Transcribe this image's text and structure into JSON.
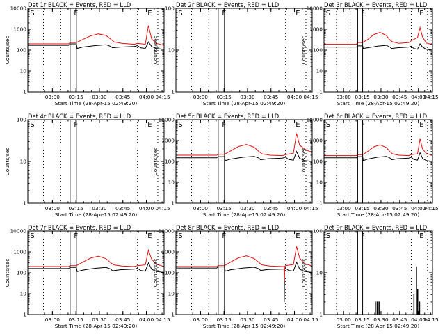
{
  "figure": {
    "title_suffix": "BLACK = Events, RED = LLD",
    "x_axis_label": "Start Time (28-Apr-15 02:49:20)",
    "y_axis_label": "Counts/sec",
    "colors": {
      "events": "#000000",
      "lld": "#e01010",
      "axes": "#000000"
    }
  },
  "chart_data": [
    {
      "type": "line",
      "title": "Det 1r",
      "ylim": [
        1,
        10000
      ],
      "yscale": "log",
      "yticks": [
        "1",
        "10",
        "100",
        "1000",
        "10000"
      ],
      "xrange_minutes": [
        -5,
        82
      ],
      "xticks": [
        "03:00",
        "03:15",
        "03:30",
        "03:45",
        "04:00",
        "04:15"
      ],
      "xtick_minutes": [
        10.7,
        25.7,
        40.7,
        55.7,
        70.7,
        85.7
      ],
      "markers": [
        {
          "label": "S",
          "minute": -4
        },
        {
          "label": "F",
          "minute": 24
        },
        {
          "label": "E",
          "minute": 71
        }
      ],
      "vlines_dotted_minutes": [
        5,
        16,
        65,
        78
      ],
      "vlines_solid_minutes": [
        22,
        26
      ],
      "series": [
        {
          "name": "Events",
          "color": "#000000",
          "x": [
            -5,
            21,
            22,
            26,
            26.5,
            30,
            38,
            45,
            48,
            49,
            54,
            63,
            65,
            67,
            70,
            72,
            74,
            77,
            82
          ],
          "values": [
            170,
            170,
            200,
            200,
            120,
            140,
            165,
            180,
            150,
            130,
            140,
            150,
            165,
            130,
            120,
            250,
            150,
            120,
            110
          ]
        },
        {
          "name": "LLD",
          "color": "#e01010",
          "x": [
            -5,
            21,
            22,
            26,
            30,
            35,
            40,
            45,
            48,
            50,
            55,
            63,
            65,
            70,
            72,
            74,
            77,
            82
          ],
          "values": [
            200,
            200,
            230,
            230,
            320,
            480,
            600,
            500,
            330,
            250,
            210,
            190,
            210,
            190,
            1500,
            350,
            210,
            170
          ]
        }
      ]
    },
    {
      "type": "line",
      "title": "Det 2r",
      "ylim": [
        1,
        100
      ],
      "yscale": "log",
      "yticks": [
        "1",
        "10",
        "100"
      ],
      "xrange_minutes": [
        -5,
        82
      ],
      "xticks": [
        "03:00",
        "03:15",
        "03:30",
        "03:45",
        "04:00",
        "04:15"
      ],
      "xtick_minutes": [
        10.7,
        25.7,
        40.7,
        55.7,
        70.7,
        85.7
      ],
      "markers": [
        {
          "label": "S",
          "minute": -4
        },
        {
          "label": "F",
          "minute": 24
        },
        {
          "label": "E",
          "minute": 71
        }
      ],
      "vlines_dotted_minutes": [
        5,
        16,
        65,
        78
      ],
      "vlines_solid_minutes": [
        22,
        26
      ],
      "series": []
    },
    {
      "type": "line",
      "title": "Det 3r",
      "ylim": [
        1,
        10000
      ],
      "yscale": "log",
      "yticks": [
        "1",
        "10",
        "100",
        "1000",
        "10000"
      ],
      "xrange_minutes": [
        -5,
        82
      ],
      "xticks": [
        "03:00",
        "03:15",
        "03:30",
        "03:45",
        "04:00",
        "04:15"
      ],
      "xtick_minutes": [
        10.7,
        25.7,
        40.7,
        55.7,
        70.7,
        85.7
      ],
      "markers": [
        {
          "label": "S",
          "minute": -4
        },
        {
          "label": "F",
          "minute": 24
        },
        {
          "label": "E",
          "minute": 71
        }
      ],
      "vlines_dotted_minutes": [
        5,
        16,
        65,
        78
      ],
      "vlines_solid_minutes": [
        22,
        26
      ],
      "series": [
        {
          "name": "Events",
          "color": "#000000",
          "x": [
            -5,
            21,
            22,
            26,
            26.5,
            30,
            38,
            45,
            48,
            49,
            54,
            63,
            65,
            67,
            70,
            72,
            74,
            77,
            82
          ],
          "values": [
            140,
            140,
            160,
            160,
            120,
            130,
            155,
            170,
            140,
            120,
            130,
            140,
            155,
            120,
            110,
            200,
            140,
            110,
            100
          ]
        },
        {
          "name": "LLD",
          "color": "#e01010",
          "x": [
            -5,
            21,
            22,
            26,
            30,
            35,
            40,
            45,
            48,
            50,
            55,
            63,
            65,
            70,
            72,
            74,
            77,
            82
          ],
          "values": [
            190,
            190,
            230,
            230,
            320,
            560,
            700,
            500,
            300,
            250,
            210,
            230,
            280,
            400,
            1200,
            430,
            220,
            180
          ]
        }
      ]
    },
    {
      "type": "line",
      "title": "Det 4r",
      "ylim": [
        1,
        100
      ],
      "yscale": "log",
      "yticks": [
        "1",
        "10",
        "100"
      ],
      "xrange_minutes": [
        -5,
        82
      ],
      "xticks": [
        "03:00",
        "03:15",
        "03:30",
        "03:45",
        "04:00",
        "04:15"
      ],
      "xtick_minutes": [
        10.7,
        25.7,
        40.7,
        55.7,
        70.7,
        85.7
      ],
      "markers": [
        {
          "label": "S",
          "minute": -4
        },
        {
          "label": "F",
          "minute": 24
        },
        {
          "label": "E",
          "minute": 71
        }
      ],
      "vlines_dotted_minutes": [
        5,
        16,
        65,
        78
      ],
      "vlines_solid_minutes": [
        22,
        26
      ],
      "series": []
    },
    {
      "type": "line",
      "title": "Det 5r",
      "ylim": [
        1,
        10000
      ],
      "yscale": "log",
      "yticks": [
        "1",
        "10",
        "100",
        "1000",
        "10000"
      ],
      "xrange_minutes": [
        -5,
        82
      ],
      "xticks": [
        "03:00",
        "03:15",
        "03:30",
        "03:45",
        "04:00",
        "04:15"
      ],
      "xtick_minutes": [
        10.7,
        25.7,
        40.7,
        55.7,
        70.7,
        85.7
      ],
      "markers": [
        {
          "label": "S",
          "minute": -4
        },
        {
          "label": "F",
          "minute": 24
        },
        {
          "label": "E",
          "minute": 71
        }
      ],
      "vlines_dotted_minutes": [
        5,
        16,
        65,
        78
      ],
      "vlines_solid_minutes": [
        22,
        26
      ],
      "series": [
        {
          "name": "Events",
          "color": "#000000",
          "x": [
            -5,
            21,
            22,
            26,
            26.5,
            30,
            38,
            45,
            48,
            49,
            54,
            63,
            65,
            67,
            70,
            72,
            74,
            77,
            82
          ],
          "values": [
            150,
            150,
            170,
            170,
            110,
            130,
            160,
            175,
            145,
            120,
            135,
            145,
            160,
            125,
            115,
            300,
            140,
            110,
            100
          ]
        },
        {
          "name": "LLD",
          "color": "#e01010",
          "x": [
            -5,
            21,
            22,
            26,
            30,
            35,
            40,
            45,
            48,
            50,
            55,
            63,
            65,
            70,
            72,
            74,
            77,
            82
          ],
          "values": [
            200,
            200,
            220,
            220,
            320,
            520,
            650,
            480,
            300,
            230,
            200,
            190,
            210,
            250,
            2200,
            600,
            400,
            260
          ]
        }
      ]
    },
    {
      "type": "line",
      "title": "Det 6r",
      "ylim": [
        1,
        10000
      ],
      "yscale": "log",
      "yticks": [
        "1",
        "10",
        "100",
        "1000",
        "10000"
      ],
      "xrange_minutes": [
        -5,
        82
      ],
      "xticks": [
        "03:00",
        "03:15",
        "03:30",
        "03:45",
        "04:00",
        "04:15"
      ],
      "xtick_minutes": [
        10.7,
        25.7,
        40.7,
        55.7,
        70.7,
        85.7
      ],
      "markers": [
        {
          "label": "S",
          "minute": -4
        },
        {
          "label": "F",
          "minute": 24
        },
        {
          "label": "E",
          "minute": 71
        }
      ],
      "vlines_dotted_minutes": [
        5,
        16,
        65,
        78
      ],
      "vlines_solid_minutes": [
        22,
        26
      ],
      "series": [
        {
          "name": "Events",
          "color": "#000000",
          "x": [
            -5,
            21,
            22,
            26,
            26.5,
            30,
            38,
            45,
            48,
            49,
            54,
            63,
            65,
            67,
            70,
            72,
            74,
            77,
            82
          ],
          "values": [
            150,
            150,
            170,
            170,
            110,
            130,
            160,
            175,
            145,
            120,
            135,
            145,
            160,
            125,
            115,
            260,
            140,
            110,
            100
          ]
        },
        {
          "name": "LLD",
          "color": "#e01010",
          "x": [
            -5,
            21,
            22,
            26,
            30,
            35,
            40,
            45,
            48,
            50,
            55,
            63,
            65,
            70,
            72,
            74,
            77,
            82
          ],
          "values": [
            190,
            190,
            210,
            210,
            300,
            500,
            620,
            460,
            290,
            230,
            200,
            190,
            210,
            230,
            1200,
            400,
            240,
            200
          ]
        }
      ]
    },
    {
      "type": "line",
      "title": "Det 7r",
      "ylim": [
        1,
        10000
      ],
      "yscale": "log",
      "yticks": [
        "1",
        "10",
        "100",
        "1000",
        "10000"
      ],
      "xrange_minutes": [
        -5,
        82
      ],
      "xticks": [
        "03:00",
        "03:15",
        "03:30",
        "03:45",
        "04:00",
        "04:15"
      ],
      "xtick_minutes": [
        10.7,
        25.7,
        40.7,
        55.7,
        70.7,
        85.7
      ],
      "markers": [
        {
          "label": "S",
          "minute": -4
        },
        {
          "label": "F",
          "minute": 24
        },
        {
          "label": "E",
          "minute": 71
        }
      ],
      "vlines_dotted_minutes": [
        5,
        16,
        65,
        78
      ],
      "vlines_solid_minutes": [
        22,
        26
      ],
      "series": [
        {
          "name": "Events",
          "color": "#000000",
          "x": [
            -5,
            21,
            22,
            26,
            26.5,
            30,
            38,
            45,
            48,
            49,
            54,
            63,
            65,
            67,
            70,
            72,
            74,
            77,
            82
          ],
          "values": [
            160,
            160,
            180,
            180,
            115,
            135,
            165,
            180,
            150,
            125,
            140,
            150,
            165,
            130,
            120,
            300,
            150,
            115,
            105
          ]
        },
        {
          "name": "LLD",
          "color": "#e01010",
          "x": [
            -5,
            21,
            22,
            26,
            30,
            35,
            40,
            45,
            48,
            50,
            55,
            63,
            65,
            70,
            72,
            74,
            77,
            82
          ],
          "values": [
            200,
            200,
            220,
            220,
            320,
            500,
            620,
            470,
            300,
            240,
            210,
            200,
            220,
            240,
            1200,
            450,
            260,
            200
          ]
        }
      ]
    },
    {
      "type": "line",
      "title": "Det 8r",
      "ylim": [
        1,
        10000
      ],
      "yscale": "log",
      "yticks": [
        "1",
        "10",
        "100",
        "1000",
        "10000"
      ],
      "xrange_minutes": [
        -5,
        82
      ],
      "xticks": [
        "03:00",
        "03:15",
        "03:30",
        "03:45",
        "04:00",
        "04:15"
      ],
      "xtick_minutes": [
        10.7,
        25.7,
        40.7,
        55.7,
        70.7,
        85.7
      ],
      "markers": [
        {
          "label": "S",
          "minute": -4
        },
        {
          "label": "F",
          "minute": 24
        },
        {
          "label": "E",
          "minute": 71
        }
      ],
      "vlines_dotted_minutes": [
        5,
        16,
        65,
        78
      ],
      "vlines_solid_minutes": [
        22,
        26
      ],
      "series": [
        {
          "name": "Events",
          "color": "#000000",
          "x": [
            -5,
            21,
            22,
            26,
            26.5,
            30,
            38,
            45,
            48,
            49,
            54,
            63,
            64,
            64.2,
            64.4,
            65,
            67,
            70,
            72,
            74,
            77,
            82
          ],
          "values": [
            170,
            170,
            190,
            190,
            120,
            140,
            170,
            185,
            155,
            130,
            145,
            150,
            150,
            4,
            150,
            165,
            130,
            120,
            320,
            150,
            115,
            105
          ]
        },
        {
          "name": "LLD",
          "color": "#e01010",
          "x": [
            -5,
            21,
            22,
            26,
            30,
            35,
            40,
            45,
            48,
            50,
            55,
            63,
            64,
            64.2,
            64.4,
            65,
            70,
            72,
            74,
            77,
            82
          ],
          "values": [
            200,
            200,
            220,
            220,
            330,
            520,
            650,
            480,
            310,
            240,
            210,
            200,
            200,
            40,
            200,
            220,
            250,
            1800,
            500,
            280,
            210
          ]
        }
      ]
    },
    {
      "type": "line",
      "title": "Det 9r",
      "ylim": [
        1,
        100
      ],
      "yscale": "log",
      "yticks": [
        "1",
        "10",
        "100"
      ],
      "xrange_minutes": [
        -5,
        82
      ],
      "xticks": [
        "03:00",
        "03:15",
        "03:30",
        "03:45",
        "04:00",
        "04:15"
      ],
      "xtick_minutes": [
        10.7,
        25.7,
        40.7,
        55.7,
        70.7,
        85.7
      ],
      "markers": [
        {
          "label": "S",
          "minute": -4
        },
        {
          "label": "F",
          "minute": 24
        },
        {
          "label": "E",
          "minute": 71
        }
      ],
      "vlines_dotted_minutes": [
        5,
        16,
        65,
        78
      ],
      "vlines_solid_minutes": [
        22,
        26
      ],
      "series": [
        {
          "name": "Events",
          "color": "#000000",
          "x": [
            -5,
            36,
            36,
            36.3,
            36.3,
            37.5,
            37.5,
            37.8,
            37.8,
            39,
            39,
            39.3,
            39.3,
            67,
            67,
            67.3,
            67.3,
            69,
            69,
            69.3,
            69.3,
            70,
            70,
            70.3,
            70.3,
            71.5,
            71.5,
            71.8,
            71.8,
            82
          ],
          "values": [
            1,
            1,
            2,
            2,
            1,
            1,
            2,
            2,
            1,
            1,
            2,
            2,
            1,
            1,
            3,
            3,
            1,
            1,
            14,
            14,
            1,
            1,
            4,
            4,
            1,
            1,
            2,
            2,
            1,
            1
          ]
        }
      ]
    }
  ]
}
